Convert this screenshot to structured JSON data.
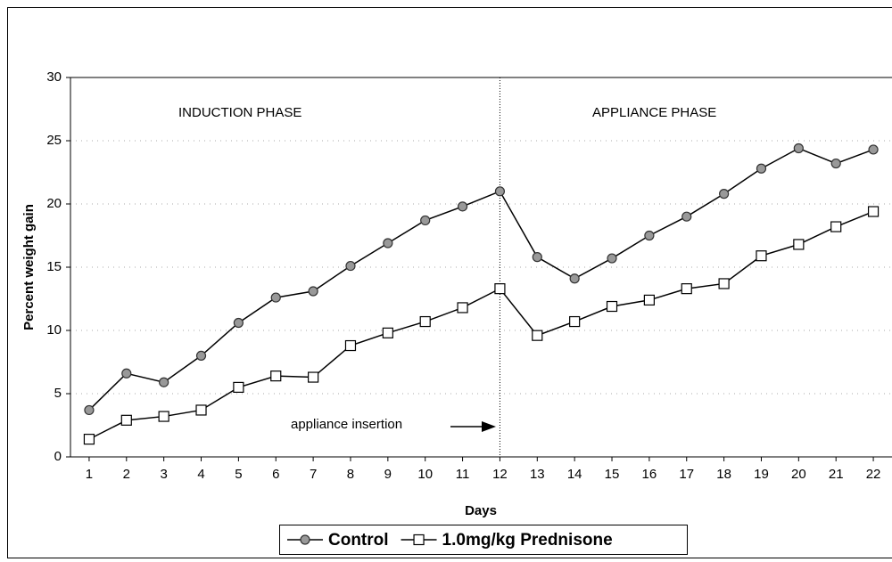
{
  "chart_data": {
    "type": "line",
    "x_label": "Days",
    "y_label": "Percent weight gain",
    "x": [
      1,
      2,
      3,
      4,
      5,
      6,
      7,
      8,
      9,
      10,
      11,
      12,
      13,
      14,
      15,
      16,
      17,
      18,
      19,
      20,
      21,
      22
    ],
    "xlim": [
      0.5,
      22.5
    ],
    "xticks": [
      1,
      2,
      3,
      4,
      5,
      6,
      7,
      8,
      9,
      10,
      11,
      12,
      13,
      14,
      15,
      16,
      17,
      18,
      19,
      20,
      21,
      22
    ],
    "ylim": [
      0,
      30
    ],
    "yticks": [
      0,
      5,
      10,
      15,
      20,
      25,
      30
    ],
    "grid": true,
    "vline": 12,
    "annotations": [
      "INDUCTION PHASE",
      "APPLIANCE PHASE",
      "appliance insertion"
    ],
    "legend": "bottom",
    "series": [
      {
        "name": "Control",
        "color": "#000000",
        "marker": "circle",
        "marker_color": "#999999",
        "values": [
          3.7,
          6.6,
          5.9,
          8.0,
          10.6,
          12.6,
          13.1,
          15.1,
          16.9,
          18.7,
          19.8,
          21.0,
          15.8,
          14.1,
          15.7,
          17.5,
          19.0,
          20.8,
          22.8,
          24.4,
          23.2,
          24.3
        ]
      },
      {
        "name": "1.0mg/kg Prednisone",
        "color": "#000000",
        "marker": "square",
        "marker_color": "#ffffff",
        "values": [
          1.4,
          2.9,
          3.2,
          3.7,
          5.5,
          6.4,
          6.3,
          8.8,
          9.8,
          10.7,
          11.8,
          13.3,
          9.6,
          10.7,
          11.9,
          12.4,
          13.3,
          13.7,
          15.9,
          16.8,
          18.2,
          19.4
        ]
      }
    ]
  }
}
